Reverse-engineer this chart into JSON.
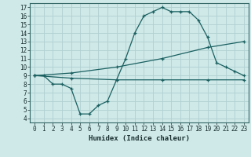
{
  "title": "",
  "xlabel": "Humidex (Indice chaleur)",
  "bg_color": "#cfe8e8",
  "grid_color": "#b0d0d0",
  "line_color": "#1a6060",
  "spine_color": "#336666",
  "xlim": [
    -0.5,
    23.5
  ],
  "ylim": [
    3.5,
    17.5
  ],
  "xticks": [
    0,
    1,
    2,
    3,
    4,
    5,
    6,
    7,
    8,
    9,
    10,
    11,
    12,
    13,
    14,
    15,
    16,
    17,
    18,
    19,
    20,
    21,
    22,
    23
  ],
  "yticks": [
    4,
    5,
    6,
    7,
    8,
    9,
    10,
    11,
    12,
    13,
    14,
    15,
    16,
    17
  ],
  "line1_x": [
    0,
    1,
    2,
    3,
    4,
    5,
    6,
    7,
    8,
    9,
    10,
    11,
    12,
    13,
    14,
    15,
    16,
    17,
    18,
    19,
    20,
    21,
    22,
    23
  ],
  "line1_y": [
    9.0,
    9.0,
    8.0,
    8.0,
    7.5,
    4.5,
    4.5,
    5.5,
    6.0,
    8.5,
    11.0,
    14.0,
    16.0,
    16.5,
    17.0,
    16.5,
    16.5,
    16.5,
    15.5,
    13.5,
    10.5,
    10.0,
    9.5,
    9.0
  ],
  "line2_x": [
    0,
    4,
    9,
    14,
    19,
    23
  ],
  "line2_y": [
    9.0,
    8.7,
    8.5,
    8.5,
    8.5,
    8.5
  ],
  "line3_x": [
    0,
    4,
    9,
    14,
    19,
    23
  ],
  "line3_y": [
    9.0,
    9.3,
    10.0,
    11.0,
    12.3,
    13.0
  ]
}
